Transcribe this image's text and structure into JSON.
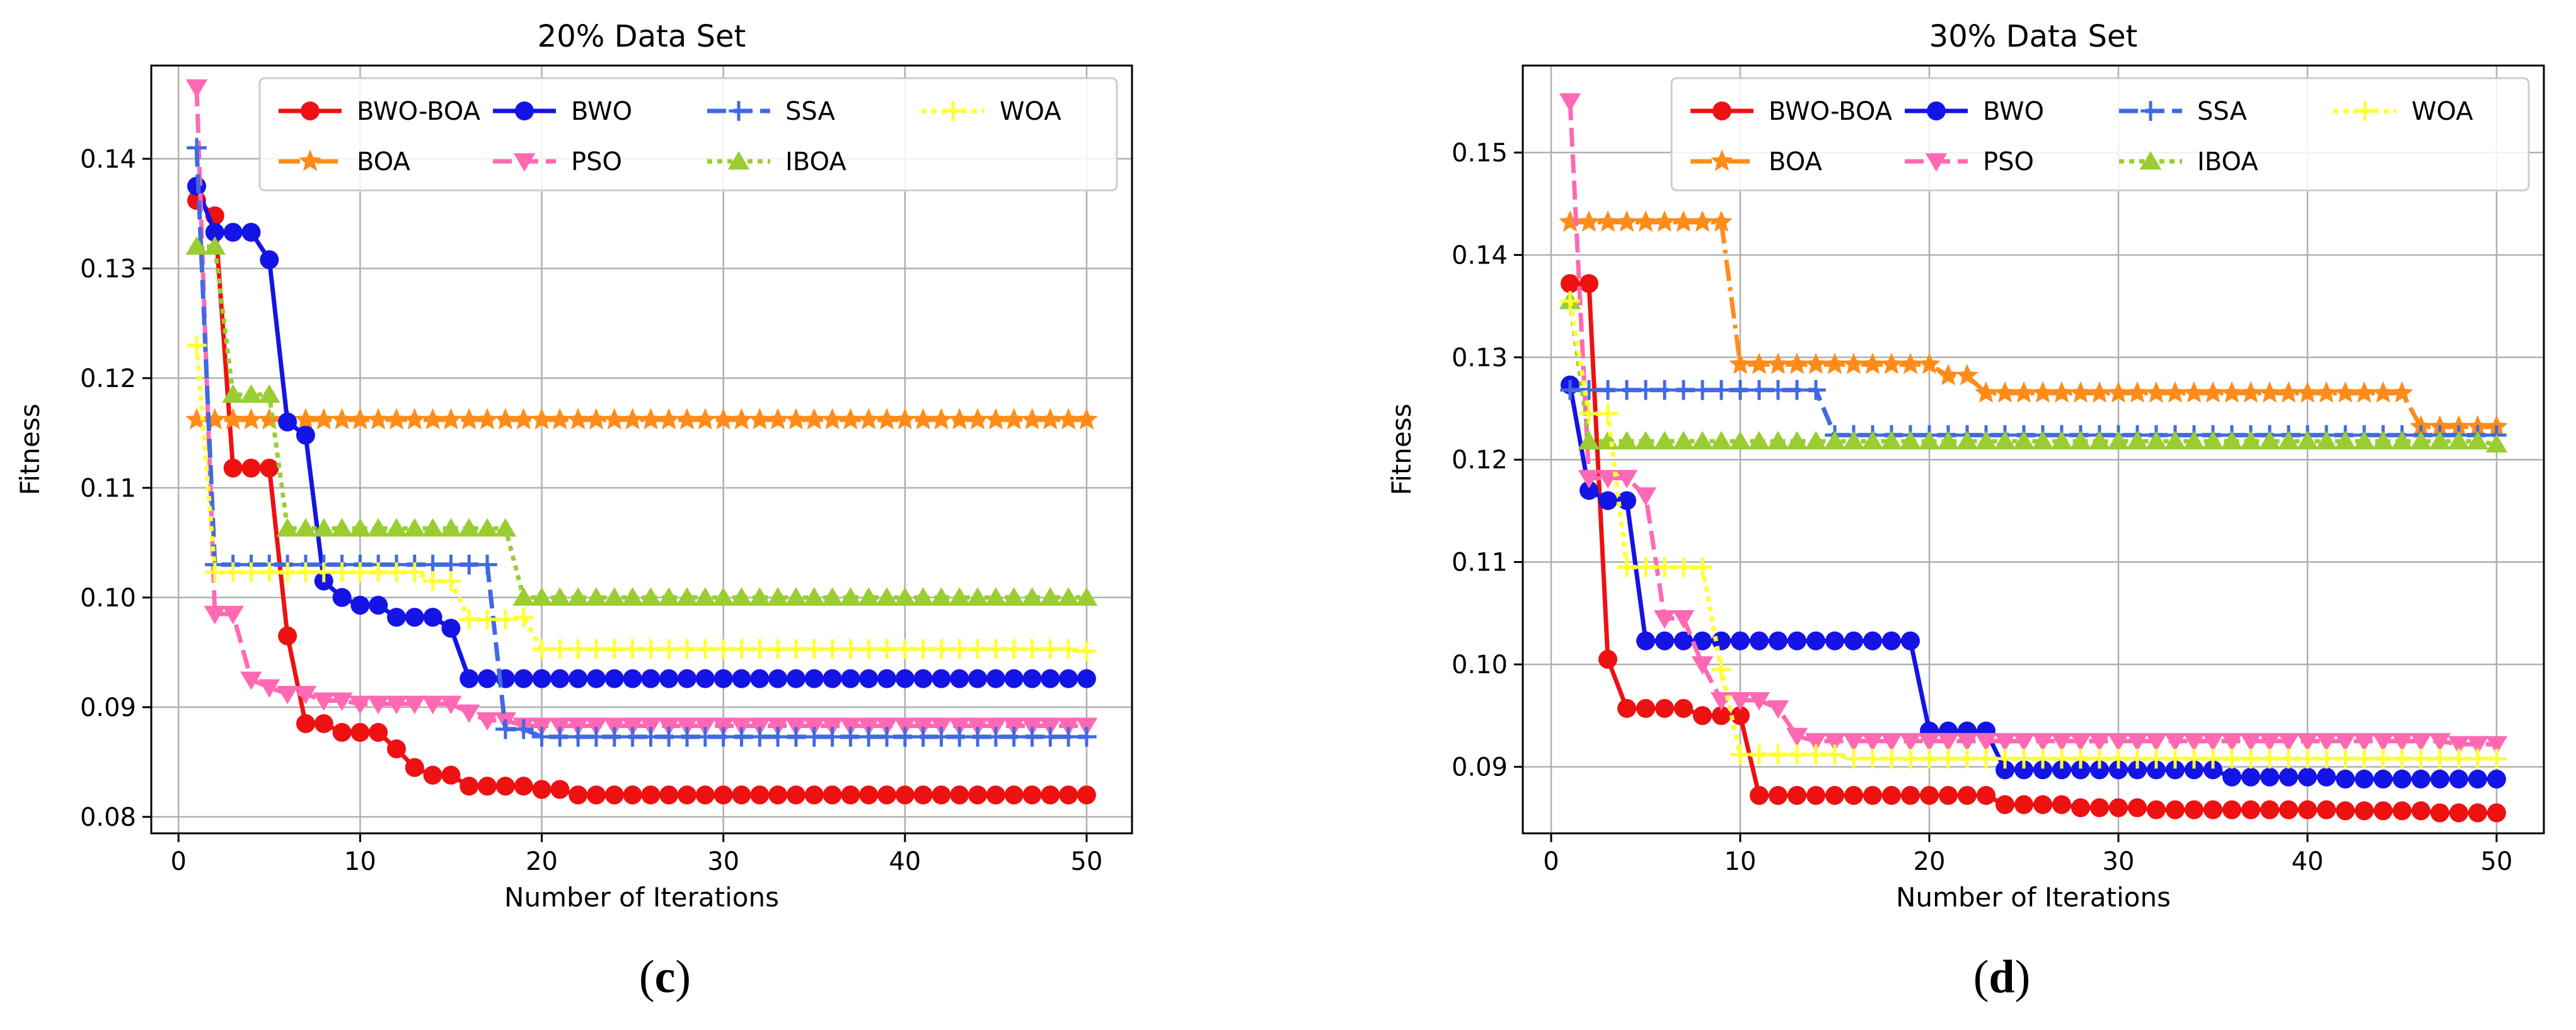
{
  "colors": {
    "BWO-BOA": "#ee1111",
    "BOA": "#ff8c1a",
    "BWO": "#1414e6",
    "PSO": "#ff69b4",
    "SSA": "#4169e1",
    "IBOA": "#9acd32",
    "WOA": "#ffff33"
  },
  "panel_labels": {
    "c": {
      "open": "(",
      "letter": "c",
      "close": ")"
    },
    "d": {
      "open": "(",
      "letter": "d",
      "close": ")"
    }
  },
  "chart_data": [
    {
      "id": "c",
      "type": "line",
      "title": "20% Data Set",
      "xlabel": "Number of Iterations",
      "ylabel": "Fitness",
      "xlim": [
        -1.5,
        52.5
      ],
      "ylim": [
        0.0785,
        0.1485
      ],
      "xticks": [
        0,
        10,
        20,
        30,
        40,
        50
      ],
      "xtick_labels": [
        "0",
        "10",
        "20",
        "30",
        "40",
        "50"
      ],
      "yticks": [
        0.08,
        0.09,
        0.1,
        0.11,
        0.12,
        0.13,
        0.14
      ],
      "ytick_labels": [
        "0.08",
        "0.09",
        "0.10",
        "0.11",
        "0.12",
        "0.13",
        "0.14"
      ],
      "grid": true,
      "legend_location": "top-right",
      "legend_order": [
        "BWO-BOA",
        "BOA",
        "BWO",
        "PSO",
        "SSA",
        "IBOA",
        "WOA"
      ],
      "series": [
        {
          "name": "BWO-BOA",
          "marker": "circle",
          "dash": "solid",
          "steps": [
            [
              1,
              0.1362
            ],
            [
              2,
              0.1348
            ],
            [
              3,
              0.1118
            ],
            [
              6,
              0.0965
            ],
            [
              7,
              0.0885
            ],
            [
              9,
              0.0877
            ],
            [
              12,
              0.0862
            ],
            [
              13,
              0.0845
            ],
            [
              14,
              0.0838
            ],
            [
              16,
              0.0828
            ],
            [
              20,
              0.0825
            ],
            [
              22,
              0.082
            ],
            [
              50,
              0.082
            ]
          ]
        },
        {
          "name": "BOA",
          "marker": "star",
          "dash": "dashdot",
          "steps": [
            [
              1,
              0.1162
            ],
            [
              50,
              0.1162
            ]
          ]
        },
        {
          "name": "BWO",
          "marker": "circle",
          "dash": "solid",
          "steps": [
            [
              1,
              0.1375
            ],
            [
              2,
              0.1333
            ],
            [
              5,
              0.1308
            ],
            [
              6,
              0.116
            ],
            [
              7,
              0.1148
            ],
            [
              8,
              0.1015
            ],
            [
              9,
              0.1
            ],
            [
              10,
              0.0993
            ],
            [
              12,
              0.0982
            ],
            [
              15,
              0.0972
            ],
            [
              16,
              0.0926
            ],
            [
              50,
              0.0926
            ]
          ]
        },
        {
          "name": "PSO",
          "marker": "triangle-down",
          "dash": "dashed",
          "steps": [
            [
              1,
              0.1465
            ],
            [
              2,
              0.0985
            ],
            [
              4,
              0.0925
            ],
            [
              5,
              0.0918
            ],
            [
              6,
              0.0912
            ],
            [
              8,
              0.0906
            ],
            [
              10,
              0.0903
            ],
            [
              16,
              0.0895
            ],
            [
              17,
              0.0888
            ],
            [
              19,
              0.0883
            ],
            [
              50,
              0.0883
            ]
          ]
        },
        {
          "name": "SSA",
          "marker": "plus",
          "dash": "dashed",
          "steps": [
            [
              1,
              0.141
            ],
            [
              2,
              0.103
            ],
            [
              17,
              0.103
            ],
            [
              18,
              0.088
            ],
            [
              20,
              0.0873
            ],
            [
              50,
              0.0873
            ]
          ]
        },
        {
          "name": "IBOA",
          "marker": "triangle-up",
          "dash": "dotted",
          "steps": [
            [
              1,
              0.132
            ],
            [
              2,
              0.132
            ],
            [
              3,
              0.1185
            ],
            [
              6,
              0.1063
            ],
            [
              19,
              0.1
            ],
            [
              50,
              0.1
            ]
          ]
        },
        {
          "name": "WOA",
          "marker": "plus",
          "dash": "dotted",
          "steps": [
            [
              1,
              0.123
            ],
            [
              2,
              0.1023
            ],
            [
              14,
              0.1015
            ],
            [
              16,
              0.098
            ],
            [
              19,
              0.0982
            ],
            [
              20,
              0.0953
            ],
            [
              50,
              0.0951
            ]
          ]
        }
      ]
    },
    {
      "id": "d",
      "type": "line",
      "title": "30% Data Set",
      "xlabel": "Number of Iterations",
      "ylabel": "Fitness",
      "xlim": [
        -1.5,
        52.5
      ],
      "ylim": [
        0.0835,
        0.1585
      ],
      "xticks": [
        0,
        10,
        20,
        30,
        40,
        50
      ],
      "xtick_labels": [
        "0",
        "10",
        "20",
        "30",
        "40",
        "50"
      ],
      "yticks": [
        0.09,
        0.1,
        0.11,
        0.12,
        0.13,
        0.14,
        0.15
      ],
      "ytick_labels": [
        "0.09",
        "0.10",
        "0.11",
        "0.12",
        "0.13",
        "0.14",
        "0.15"
      ],
      "grid": true,
      "legend_location": "top-right",
      "legend_order": [
        "BWO-BOA",
        "BOA",
        "BWO",
        "PSO",
        "SSA",
        "IBOA",
        "WOA"
      ],
      "series": [
        {
          "name": "BWO-BOA",
          "marker": "circle",
          "dash": "solid",
          "steps": [
            [
              1,
              0.1372
            ],
            [
              3,
              0.1005
            ],
            [
              4,
              0.0957
            ],
            [
              8,
              0.095
            ],
            [
              11,
              0.0872
            ],
            [
              24,
              0.0863
            ],
            [
              28,
              0.086
            ],
            [
              32,
              0.0858
            ],
            [
              42,
              0.0857
            ],
            [
              47,
              0.0855
            ],
            [
              50,
              0.0855
            ]
          ]
        },
        {
          "name": "BOA",
          "marker": "star",
          "dash": "dashdot",
          "steps": [
            [
              1,
              0.1432
            ],
            [
              10,
              0.1293
            ],
            [
              21,
              0.1282
            ],
            [
              23,
              0.1265
            ],
            [
              46,
              0.1232
            ],
            [
              50,
              0.1232
            ]
          ]
        },
        {
          "name": "BWO",
          "marker": "circle",
          "dash": "solid",
          "steps": [
            [
              1,
              0.1273
            ],
            [
              2,
              0.117
            ],
            [
              3,
              0.116
            ],
            [
              5,
              0.1023
            ],
            [
              20,
              0.0935
            ],
            [
              24,
              0.0897
            ],
            [
              36,
              0.089
            ],
            [
              42,
              0.0888
            ],
            [
              50,
              0.0888
            ]
          ]
        },
        {
          "name": "PSO",
          "marker": "triangle-down",
          "dash": "dashed",
          "steps": [
            [
              1,
              0.155
            ],
            [
              2,
              0.1182
            ],
            [
              5,
              0.1165
            ],
            [
              6,
              0.1045
            ],
            [
              8,
              0.1
            ],
            [
              9,
              0.0965
            ],
            [
              12,
              0.0957
            ],
            [
              13,
              0.093
            ],
            [
              14,
              0.0925
            ],
            [
              48,
              0.0922
            ],
            [
              50,
              0.0922
            ]
          ]
        },
        {
          "name": "SSA",
          "marker": "plus",
          "dash": "dashed",
          "steps": [
            [
              1,
              0.1268
            ],
            [
              15,
              0.1224
            ],
            [
              50,
              0.1224
            ]
          ]
        },
        {
          "name": "IBOA",
          "marker": "triangle-up",
          "dash": "dotted",
          "steps": [
            [
              1,
              0.1355
            ],
            [
              2,
              0.1218
            ],
            [
              50,
              0.1215
            ]
          ]
        },
        {
          "name": "WOA",
          "marker": "plus",
          "dash": "dotted",
          "steps": [
            [
              1,
              0.1355
            ],
            [
              2,
              0.1245
            ],
            [
              4,
              0.1095
            ],
            [
              9,
              0.0995
            ],
            [
              10,
              0.0912
            ],
            [
              16,
              0.0908
            ],
            [
              50,
              0.0908
            ]
          ]
        }
      ]
    }
  ]
}
